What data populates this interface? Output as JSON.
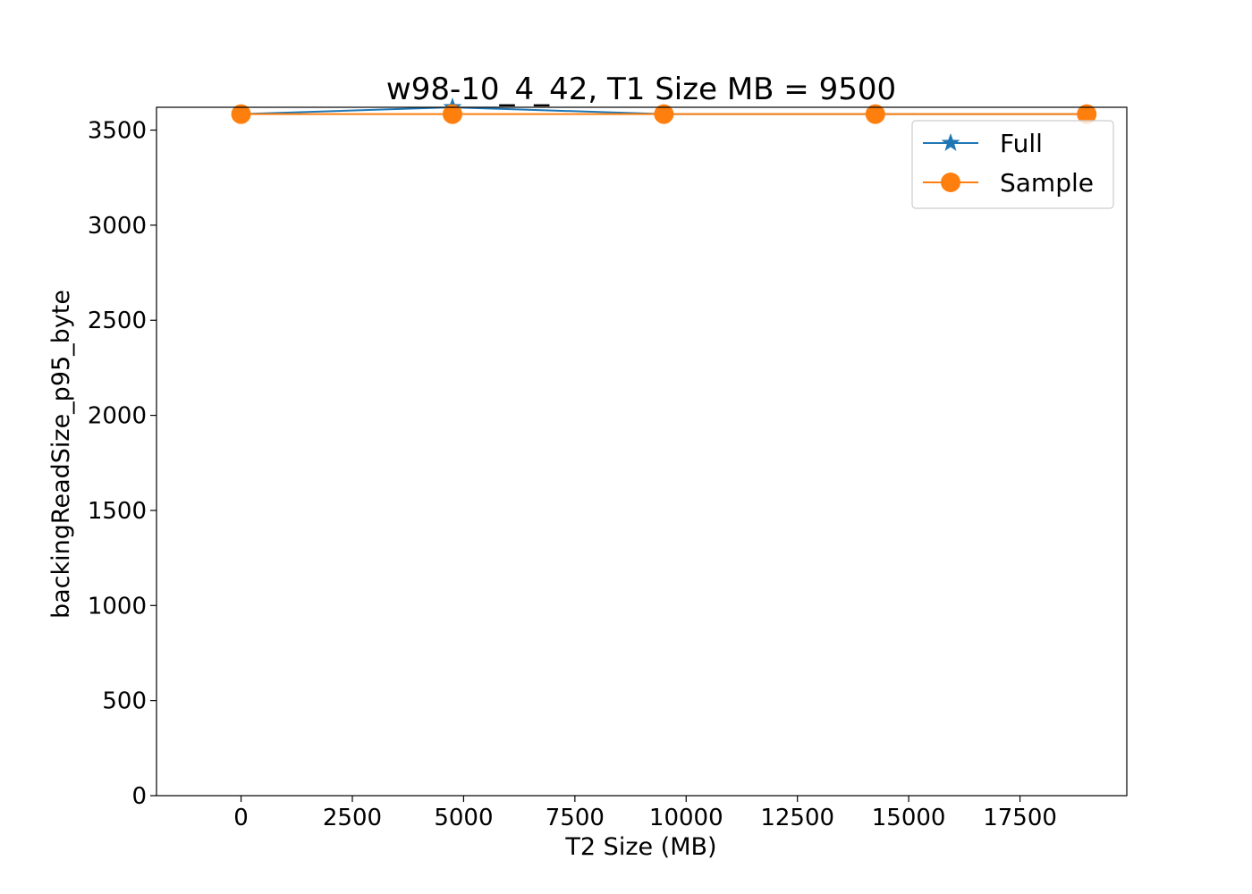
{
  "chart_data": {
    "type": "line",
    "title": "w98-10_4_42, T1 Size MB = 9500",
    "xlabel": "T2 Size (MB)",
    "ylabel": "backingReadSize_p95_byte",
    "xlim": [
      -1900,
      19900
    ],
    "ylim": [
      0,
      3620
    ],
    "x_ticks": [
      0,
      2500,
      5000,
      7500,
      10000,
      12500,
      15000,
      17500
    ],
    "y_ticks": [
      0,
      500,
      1000,
      1500,
      2000,
      2500,
      3000,
      3500
    ],
    "grid": false,
    "legend_position": "top-right",
    "series": [
      {
        "name": "Full",
        "color": "#1f77b4",
        "marker": "star",
        "x": [
          0,
          4750,
          9500,
          14250,
          19000
        ],
        "y": [
          3584,
          3620,
          3584,
          3584,
          3584
        ]
      },
      {
        "name": "Sample",
        "color": "#ff7f0e",
        "marker": "circle",
        "x": [
          0,
          4750,
          9500,
          14250,
          19000
        ],
        "y": [
          3584,
          3584,
          3584,
          3584,
          3584
        ]
      }
    ]
  }
}
